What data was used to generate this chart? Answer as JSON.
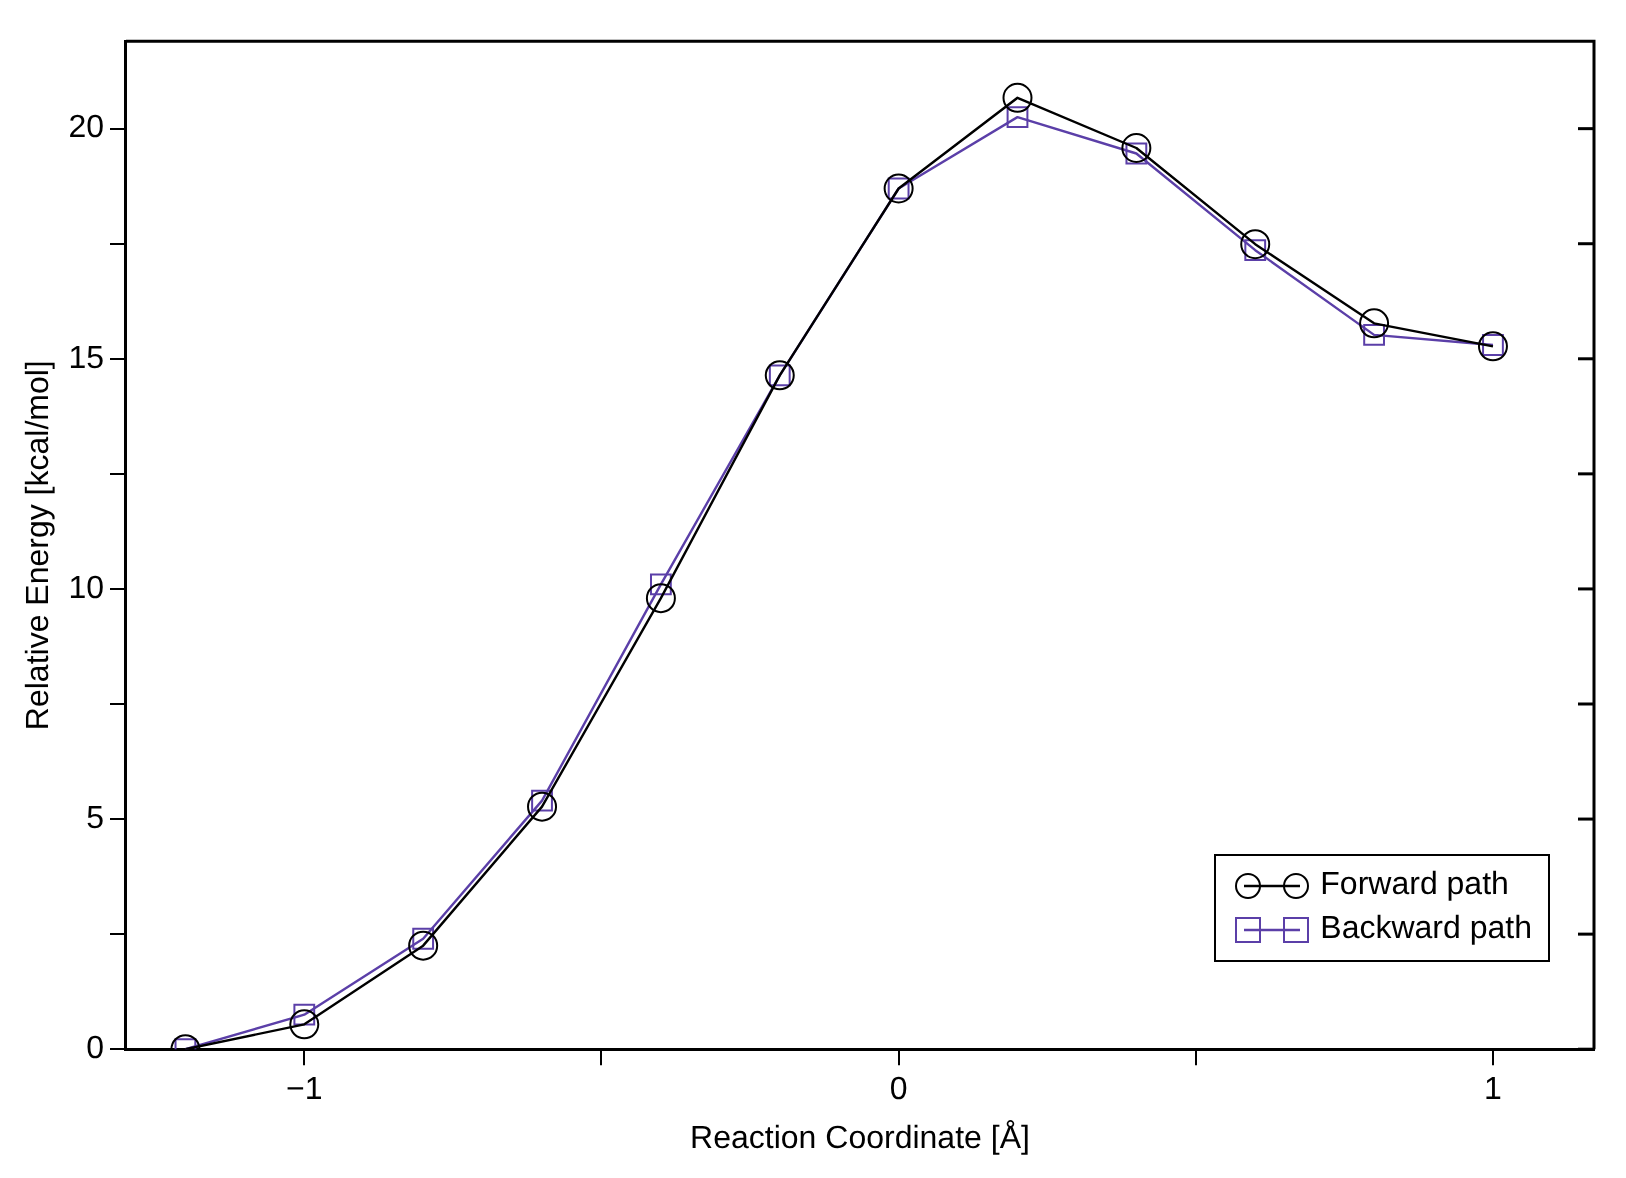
{
  "chart_data": {
    "type": "line",
    "xlabel": "Reaction Coordinate [Å]",
    "ylabel": "Relative Energy [kcal/mol]",
    "x": [
      -1.2,
      -1.0,
      -0.8,
      -0.6,
      -0.4,
      -0.2,
      0.0,
      0.2,
      0.4,
      0.6,
      0.8,
      1.0
    ],
    "series": [
      {
        "name": "Forward path",
        "color": "#000000",
        "marker": "circle",
        "values": [
          0,
          0.54,
          2.25,
          5.27,
          9.8,
          14.64,
          18.7,
          20.67,
          19.58,
          17.49,
          15.77,
          15.27
        ]
      },
      {
        "name": "Backward path",
        "color": "#5b3fa8",
        "marker": "square",
        "values": [
          0,
          0.75,
          2.4,
          5.4,
          10.1,
          14.64,
          18.7,
          20.25,
          19.46,
          17.36,
          15.52,
          15.3
        ]
      }
    ],
    "xlim": [
      -1.3,
      1.17
    ],
    "xticks": [
      -1,
      {
        "value": -0.5,
        "label": null
      },
      0,
      {
        "value": 0.5,
        "label": null
      },
      1
    ],
    "ylim": [
      0,
      21.9
    ],
    "yticks": [
      0,
      {
        "value": 2.5,
        "label": null
      },
      5,
      {
        "value": 7.5,
        "label": null
      },
      10,
      {
        "value": 12.5,
        "label": null
      },
      15,
      {
        "value": 17.5,
        "label": null
      },
      20
    ],
    "grid": false,
    "legend": "bottom right",
    "line_style": "solid"
  }
}
